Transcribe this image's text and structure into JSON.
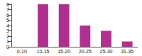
{
  "chart_data": {
    "type": "bar",
    "categories": [
      "0-10",
      "10-15",
      "15-20",
      "20-25",
      "25-30",
      "31-35"
    ],
    "values": [
      0,
      8,
      8,
      4,
      3,
      1
    ],
    "color": "#b0308f",
    "ylim": [
      0,
      8
    ],
    "yticks": [
      0,
      1,
      2,
      3,
      4,
      5,
      6,
      7,
      8
    ],
    "grid": false
  }
}
